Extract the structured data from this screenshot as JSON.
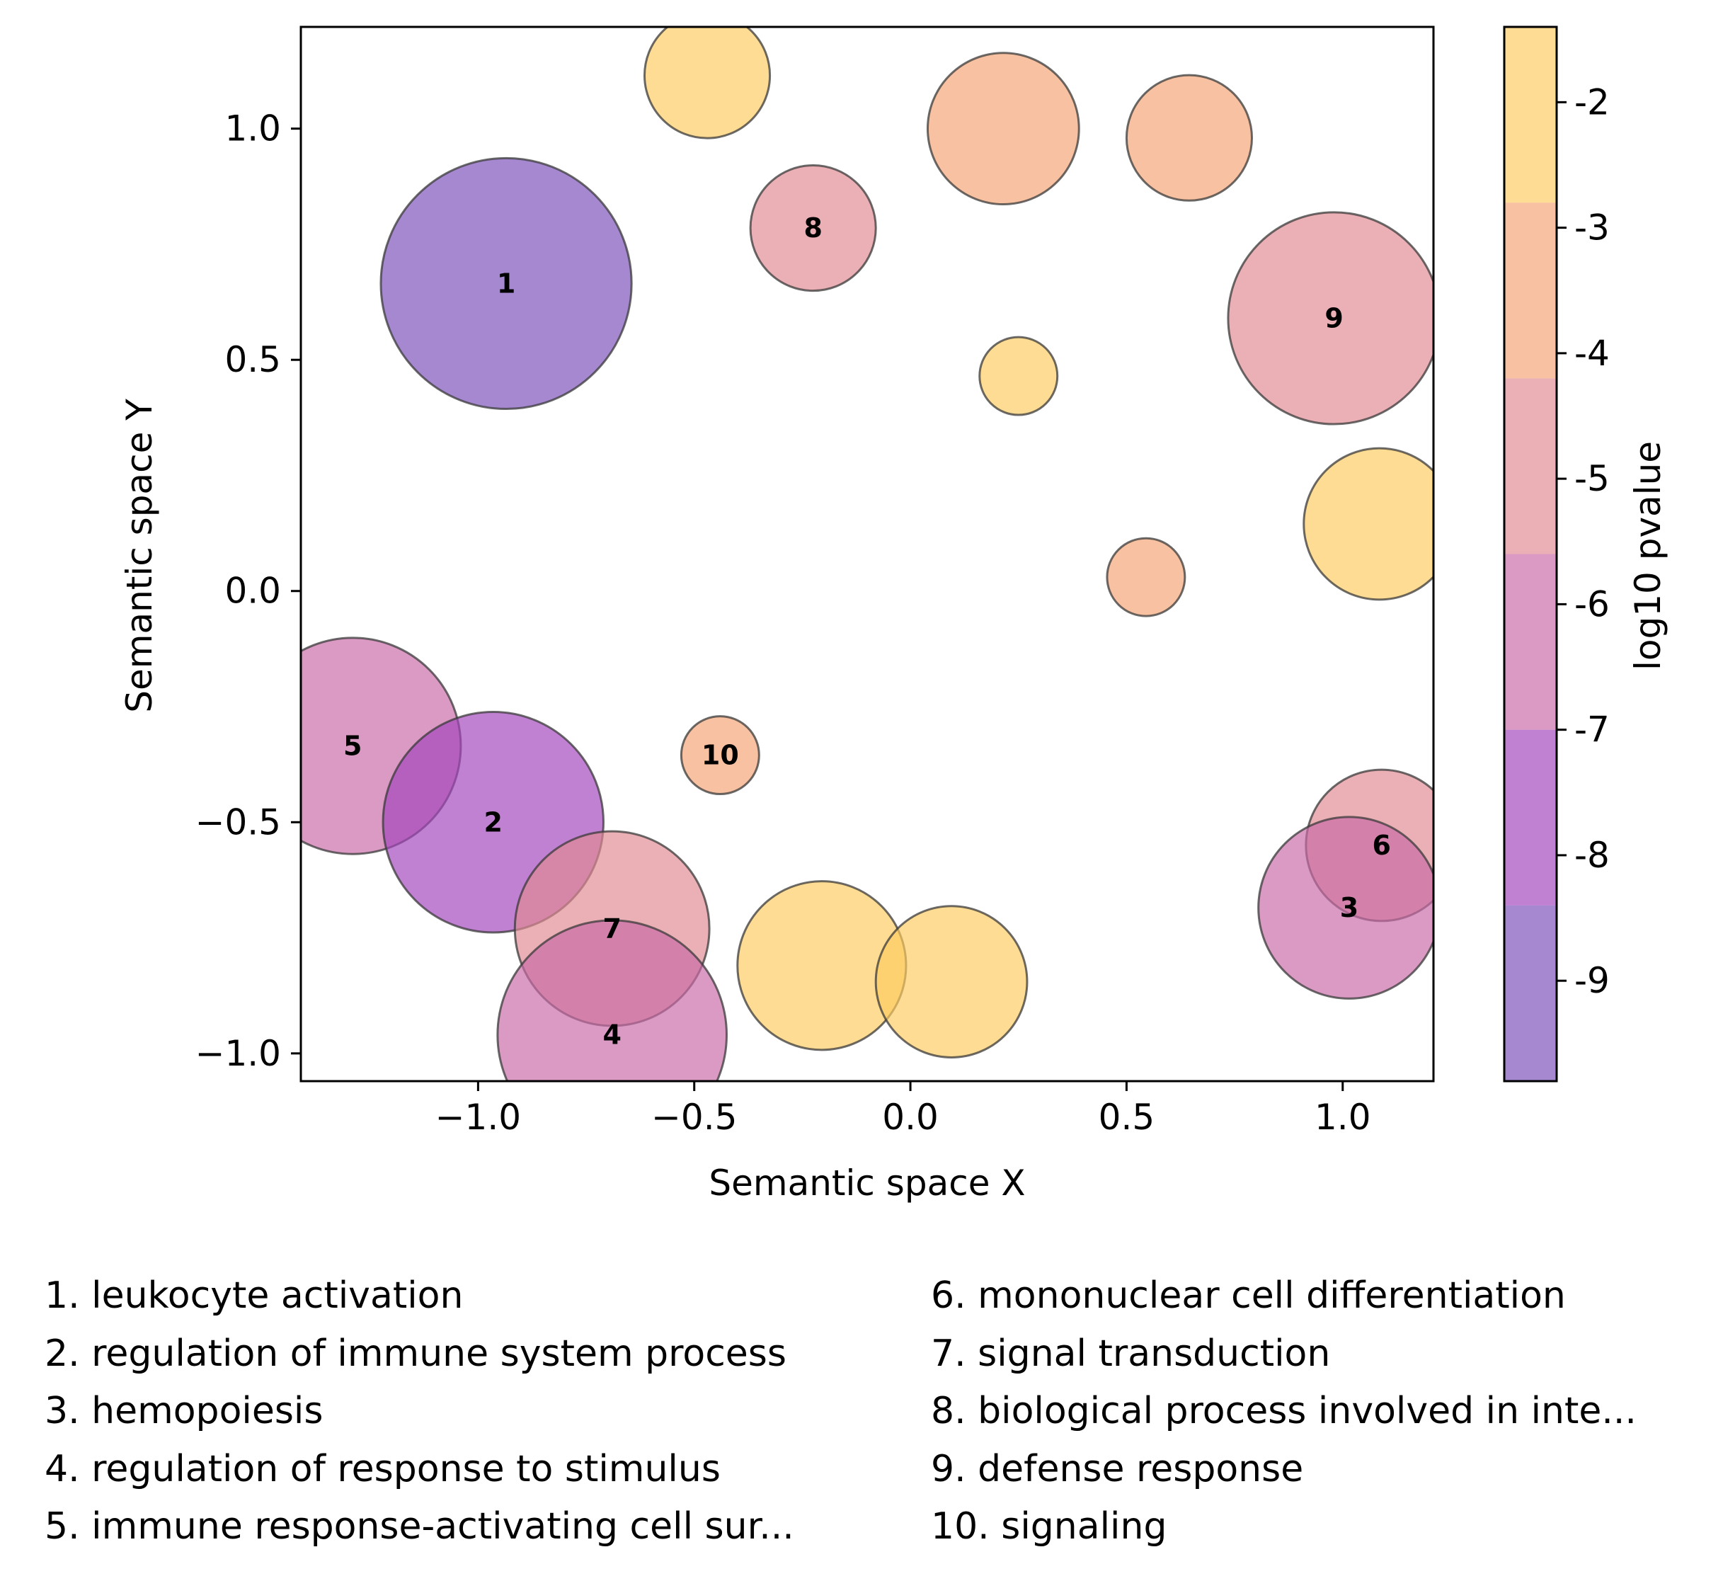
{
  "chart_data": {
    "type": "scatter",
    "xlabel": "Semantic space X",
    "ylabel": "Semantic space Y",
    "xlim": [
      -1.41,
      1.21
    ],
    "ylim": [
      -1.06,
      1.22
    ],
    "xticks": [
      {
        "value": -1.0,
        "label": "−1.0"
      },
      {
        "value": -0.5,
        "label": "−0.5"
      },
      {
        "value": 0.0,
        "label": "0.0"
      },
      {
        "value": 0.5,
        "label": "0.5"
      },
      {
        "value": 1.0,
        "label": "1.0"
      }
    ],
    "yticks": [
      {
        "value": -1.0,
        "label": "−1.0"
      },
      {
        "value": -0.5,
        "label": "−0.5"
      },
      {
        "value": 0.0,
        "label": "0.0"
      },
      {
        "value": 0.5,
        "label": "0.5"
      },
      {
        "value": 1.0,
        "label": "1.0"
      }
    ],
    "grid": false,
    "colorbar": {
      "label": "log10 pvalue",
      "range": [
        -9.8,
        -1.4
      ],
      "bands": [
        {
          "from": -9.8,
          "to": -8.4,
          "color": "#7b50b8"
        },
        {
          "from": -8.4,
          "to": -7.0,
          "color": "#a346bd"
        },
        {
          "from": -7.0,
          "to": -5.6,
          "color": "#c96aa6"
        },
        {
          "from": -5.6,
          "to": -4.2,
          "color": "#e08a92"
        },
        {
          "from": -4.2,
          "to": -2.8,
          "color": "#f4a474"
        },
        {
          "from": -2.8,
          "to": -1.4,
          "color": "#fdcb60"
        }
      ],
      "ticks": [
        {
          "value": -2,
          "label": "-2"
        },
        {
          "value": -3,
          "label": "-3"
        },
        {
          "value": -4,
          "label": "-4"
        },
        {
          "value": -5,
          "label": "-5"
        },
        {
          "value": -6,
          "label": "-6"
        },
        {
          "value": -7,
          "label": "-7"
        },
        {
          "value": -8,
          "label": "-8"
        },
        {
          "value": -9,
          "label": "-9"
        }
      ]
    },
    "points": [
      {
        "label": "",
        "x": -0.47,
        "y": 1.115,
        "r": 0.145,
        "log10p": -2.0
      },
      {
        "label": "",
        "x": 0.215,
        "y": 1.0,
        "r": 0.175,
        "log10p": -3.5
      },
      {
        "label": "",
        "x": 0.645,
        "y": 0.98,
        "r": 0.145,
        "log10p": -3.5
      },
      {
        "label": "1",
        "x": -0.935,
        "y": 0.665,
        "r": 0.29,
        "log10p": -9.0
      },
      {
        "label": "8",
        "x": -0.225,
        "y": 0.785,
        "r": 0.145,
        "log10p": -5.0
      },
      {
        "label": "9",
        "x": 0.98,
        "y": 0.59,
        "r": 0.245,
        "log10p": -5.0
      },
      {
        "label": "",
        "x": 0.25,
        "y": 0.465,
        "r": 0.09,
        "log10p": -2.0
      },
      {
        "label": "",
        "x": 1.085,
        "y": 0.145,
        "r": 0.175,
        "log10p": -2.0
      },
      {
        "label": "",
        "x": 0.545,
        "y": 0.03,
        "r": 0.09,
        "log10p": -3.5
      },
      {
        "label": "5",
        "x": -1.29,
        "y": -0.335,
        "r": 0.25,
        "log10p": -6.0
      },
      {
        "label": "10",
        "x": -0.44,
        "y": -0.355,
        "r": 0.09,
        "log10p": -3.5
      },
      {
        "label": "2",
        "x": -0.965,
        "y": -0.5,
        "r": 0.255,
        "log10p": -7.5
      },
      {
        "label": "6",
        "x": 1.09,
        "y": -0.55,
        "r": 0.175,
        "log10p": -5.0
      },
      {
        "label": "3",
        "x": 1.015,
        "y": -0.685,
        "r": 0.21,
        "log10p": -6.0
      },
      {
        "label": "7",
        "x": -0.69,
        "y": -0.73,
        "r": 0.225,
        "log10p": -5.0
      },
      {
        "label": "",
        "x": -0.205,
        "y": -0.81,
        "r": 0.195,
        "log10p": -2.0
      },
      {
        "label": "",
        "x": 0.095,
        "y": -0.845,
        "r": 0.175,
        "log10p": -2.0
      },
      {
        "label": "4",
        "x": -0.69,
        "y": -0.96,
        "r": 0.265,
        "log10p": -6.0
      }
    ]
  },
  "legend": {
    "left": [
      "1. leukocyte activation",
      "2. regulation of immune system process",
      "3. hemopoiesis",
      "4. regulation of response to stimulus",
      "5. immune response-activating cell sur..."
    ],
    "right": [
      "6. mononuclear cell differentiation",
      "7. signal transduction",
      "8. biological process involved in inte...",
      "9. defense response",
      "10. signaling"
    ]
  }
}
